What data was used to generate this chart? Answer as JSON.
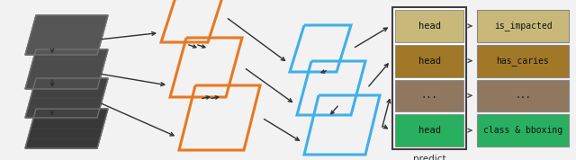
{
  "fig_width": 6.4,
  "fig_height": 1.78,
  "dpi": 100,
  "bg_color": "#f2f2f2",
  "orange_color": "#e87820",
  "blue_color": "#40b0e8",
  "head_color_0": "#c8b87a",
  "head_color_1": "#a07828",
  "head_color_2": "#907860",
  "head_color_3": "#28b060",
  "arrow_color": "#303030",
  "head_labels": [
    "head",
    "head",
    "...",
    "head"
  ],
  "out_labels": [
    "is_impacted",
    "has_caries",
    "...",
    "class & bboxing"
  ],
  "predict_label": "predict"
}
